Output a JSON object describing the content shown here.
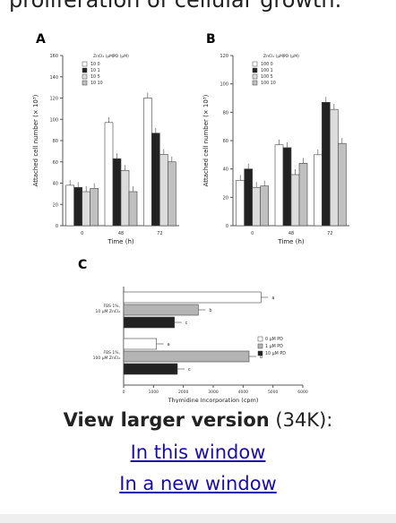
{
  "page": {
    "intro_text": "proliferation of cellular growth.",
    "caption_bold": "View larger version",
    "caption_size": " (34K):",
    "link_same_window": "In this window",
    "link_new_window": "In a new window"
  },
  "chart_data": [
    {
      "type": "bar",
      "panel": "A",
      "xlabel": "Time (h)",
      "ylabel": "Attached cell number (× 10³)",
      "ylim": [
        0,
        160
      ],
      "ytick_step": 20,
      "categories": [
        "0",
        "48",
        "72"
      ],
      "legend_header": [
        "ZnCl₂ (μM)",
        "PD (μM)"
      ],
      "series": [
        {
          "name": "10   0",
          "fill": "#ffffff",
          "values": [
            38,
            97,
            120
          ]
        },
        {
          "name": "10   1",
          "fill": "#222222",
          "values": [
            36,
            63,
            87
          ]
        },
        {
          "name": "10   5",
          "fill": "#dcdcdc",
          "values": [
            32,
            52,
            67
          ]
        },
        {
          "name": "10   10",
          "fill": "#c0c0c0",
          "values": [
            35,
            32,
            60
          ]
        }
      ]
    },
    {
      "type": "bar",
      "panel": "B",
      "xlabel": "Time (h)",
      "ylabel": "Attached cell number (× 10³)",
      "ylim": [
        0,
        120
      ],
      "ytick_step": 20,
      "categories": [
        "0",
        "48",
        "72"
      ],
      "legend_header": [
        "ZnCl₂ (μM)",
        "PD (μM)"
      ],
      "series": [
        {
          "name": "100   0",
          "fill": "#ffffff",
          "values": [
            32,
            57,
            50
          ]
        },
        {
          "name": "100   1",
          "fill": "#222222",
          "values": [
            40,
            55,
            87
          ]
        },
        {
          "name": "100   5",
          "fill": "#dcdcdc",
          "values": [
            27,
            36,
            82
          ]
        },
        {
          "name": "100   10",
          "fill": "#c0c0c0",
          "values": [
            28,
            44,
            58
          ]
        }
      ]
    },
    {
      "type": "bar",
      "panel": "C",
      "orientation": "horizontal",
      "xlabel": "Thymidine Incorporation (cpm)",
      "xlim": [
        0,
        6000
      ],
      "xticks": [
        0,
        1000,
        2000,
        3000,
        4000,
        5000,
        6000
      ],
      "groups": [
        "FBS 1%, 10 μM ZnCl₂",
        "FBS 1%, 100 μM ZnCl₂"
      ],
      "series": [
        {
          "name": "0 μM PD",
          "fill": "#ffffff",
          "values": [
            4600,
            1100
          ],
          "labels": [
            "a",
            "a"
          ]
        },
        {
          "name": "1 μM PD",
          "fill": "#b4b4b4",
          "values": [
            2500,
            4200
          ],
          "labels": [
            "b",
            "b"
          ]
        },
        {
          "name": "10 μM PD",
          "fill": "#222222",
          "values": [
            1700,
            1800
          ],
          "labels": [
            "c",
            "c"
          ]
        }
      ]
    }
  ]
}
